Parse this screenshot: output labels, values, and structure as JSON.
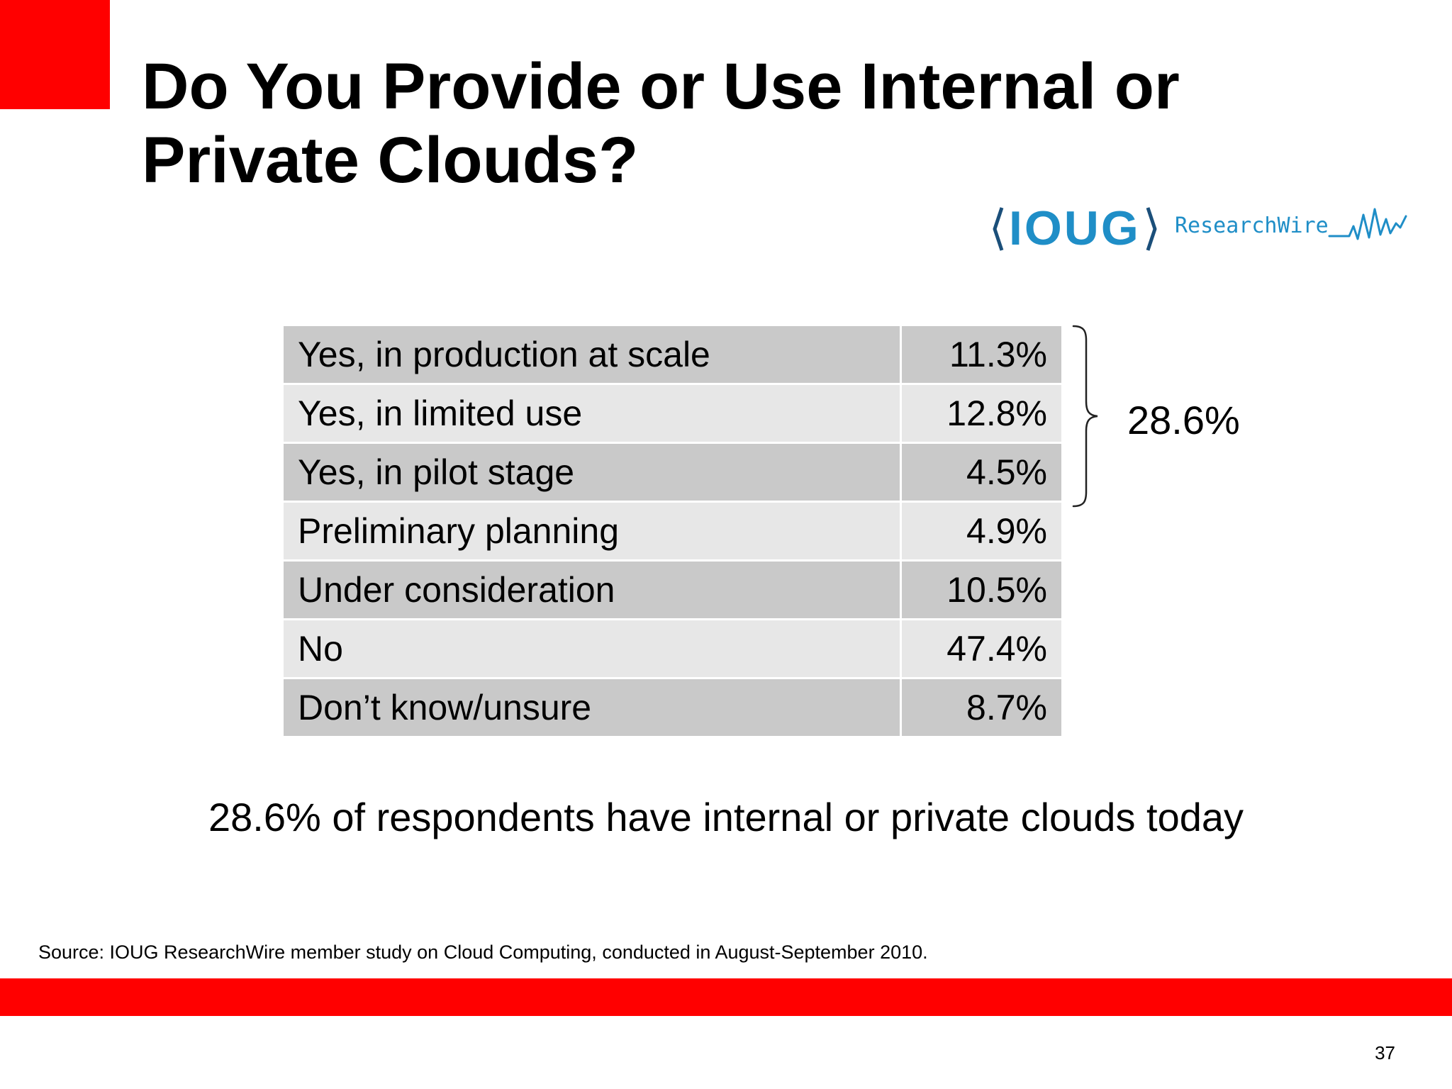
{
  "slide": {
    "title_lines": [
      "Do You Provide or Use Internal or",
      "Private Clouds?"
    ],
    "logo": {
      "name": "IOUG",
      "tagline": "ResearchWire",
      "color": "#1f8ec7"
    },
    "table": {
      "rows": [
        {
          "label": "Yes, in production at scale",
          "value": "11.3%"
        },
        {
          "label": "Yes, in limited use",
          "value": "12.8%"
        },
        {
          "label": "Yes, in pilot stage",
          "value": "4.5%"
        },
        {
          "label": "Preliminary planning",
          "value": "4.9%"
        },
        {
          "label": "Under consideration",
          "value": "10.5%"
        },
        {
          "label": "No",
          "value": "47.4%"
        },
        {
          "label": "Don’t know/unsure",
          "value": "8.7%"
        }
      ]
    },
    "brace_total": "28.6%",
    "summary": "28.6% of respondents have internal or private clouds today",
    "source": "Source: IOUG ResearchWire member study on Cloud Computing, conducted in August-September 2010.",
    "page_number": "37",
    "accent_color": "#ff0000"
  }
}
